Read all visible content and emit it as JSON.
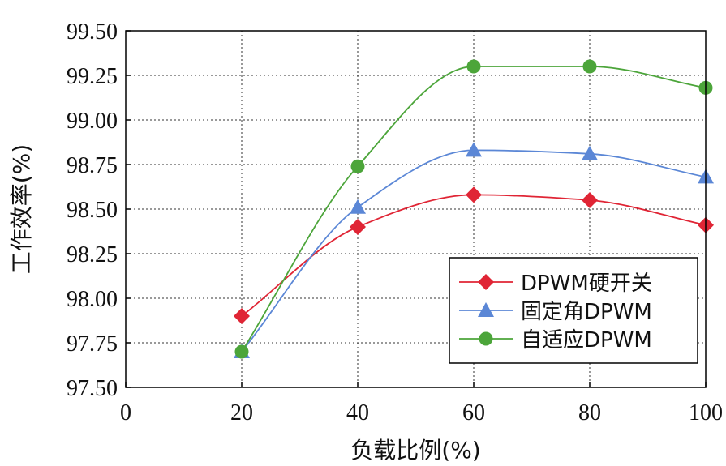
{
  "chart_data": {
    "type": "line",
    "xlabel": "负载比例(%)",
    "ylabel": "工作效率(%)",
    "xlim": [
      0,
      100
    ],
    "ylim": [
      97.5,
      99.5
    ],
    "x_ticks": [
      0,
      20,
      40,
      60,
      80,
      100
    ],
    "y_ticks": [
      "97.50",
      "97.75",
      "98.00",
      "98.25",
      "98.50",
      "98.75",
      "99.00",
      "99.25",
      "99.50"
    ],
    "grid": "on (dotted)",
    "legend_position": "lower-right",
    "x": [
      20,
      40,
      60,
      80,
      100
    ],
    "series": [
      {
        "name": "DPWM硬开关",
        "color": "#e02535",
        "marker": "diamond",
        "values": [
          97.9,
          98.4,
          98.58,
          98.55,
          98.41
        ]
      },
      {
        "name": "固定角DPWM",
        "color": "#5b87d6",
        "marker": "triangle",
        "values": [
          97.7,
          98.51,
          98.83,
          98.81,
          98.68
        ]
      },
      {
        "name": "自适应DPWM",
        "color": "#4ca53a",
        "marker": "circle",
        "values": [
          97.7,
          98.74,
          99.3,
          99.3,
          99.18
        ]
      }
    ]
  }
}
